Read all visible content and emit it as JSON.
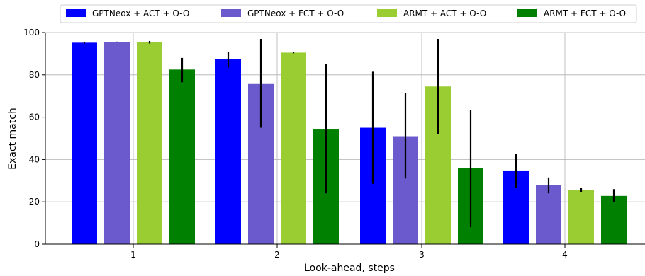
{
  "chart_data": {
    "type": "bar",
    "xlabel": "Look-ahead, steps",
    "ylabel": "Exact match",
    "categories": [
      "1",
      "2",
      "3",
      "4"
    ],
    "ylim": [
      0,
      100
    ],
    "yticks": [
      0,
      20,
      40,
      60,
      80,
      100
    ],
    "grid": true,
    "legend_position": "top",
    "series": [
      {
        "name": "GPTNeox + ACT + O-O",
        "color": "#0000ff",
        "values": [
          95.2,
          87.5,
          55.0,
          34.8
        ],
        "err_low": [
          94.8,
          83.5,
          28.5,
          26.5
        ],
        "err_high": [
          95.5,
          91.0,
          81.5,
          42.5
        ]
      },
      {
        "name": "GPTNeox + FCT + O-O",
        "color": "#6a5acd",
        "values": [
          95.5,
          76.0,
          51.0,
          27.8
        ],
        "err_low": [
          95.3,
          55.0,
          31.0,
          24.0
        ],
        "err_high": [
          95.7,
          97.0,
          71.5,
          31.5
        ]
      },
      {
        "name": "ARMT + ACT + O-O",
        "color": "#9acd32",
        "values": [
          95.5,
          90.5,
          74.5,
          25.5
        ],
        "err_low": [
          94.8,
          90.2,
          52.0,
          24.5
        ],
        "err_high": [
          96.0,
          90.8,
          97.0,
          26.5
        ]
      },
      {
        "name": "ARMT + FCT + O-O",
        "color": "#008000",
        "values": [
          82.5,
          54.5,
          36.0,
          22.8
        ],
        "err_low": [
          76.5,
          24.0,
          8.0,
          20.0
        ],
        "err_high": [
          88.0,
          85.0,
          63.5,
          26.0
        ]
      }
    ]
  }
}
